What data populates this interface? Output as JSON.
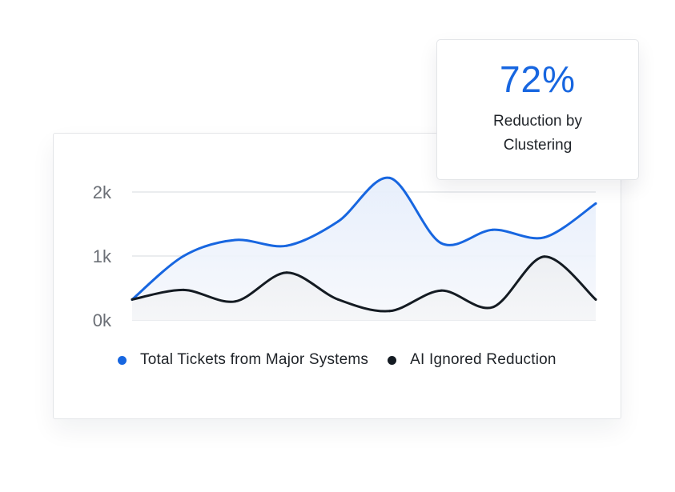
{
  "chart_data": {
    "type": "area",
    "y_ticks": [
      "2k",
      "1k",
      "0k"
    ],
    "y_tick_values": [
      2000,
      1000,
      0
    ],
    "ylim": [
      0,
      2000
    ],
    "grid": true,
    "legend_placement": "bottom",
    "series": [
      {
        "name": "Total Tickets from Major Systems",
        "color": "#1766e0",
        "values": [
          320,
          1000,
          1250,
          1160,
          1540,
          2220,
          1200,
          1410,
          1290,
          1820
        ]
      },
      {
        "name": "AI Ignored Reduction",
        "color": "#141b22",
        "values": [
          320,
          470,
          290,
          740,
          320,
          140,
          460,
          200,
          990,
          320
        ]
      }
    ]
  },
  "stat": {
    "value": "72%",
    "label_line1": "Reduction by",
    "label_line2": "Clustering"
  }
}
